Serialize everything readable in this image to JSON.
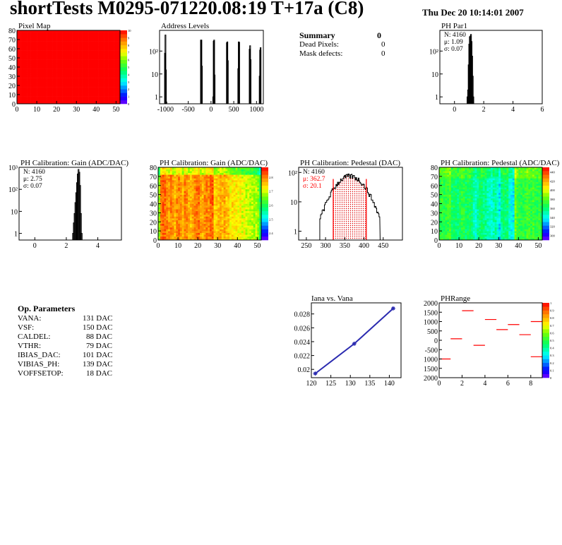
{
  "header": {
    "title": "shortTests M0295-071220.08:19 T+17a (C8)",
    "date": "Thu Dec 20 10:14:01 2007"
  },
  "summary": {
    "title": "Summary",
    "title_value": "0",
    "rows": [
      {
        "label": "Dead Pixels:",
        "value": "0"
      },
      {
        "label": "Mask defects:",
        "value": "0"
      }
    ]
  },
  "op_parameters": {
    "title": "Op. Parameters",
    "rows": [
      {
        "label": "VANA:",
        "value": "131 DAC"
      },
      {
        "label": "VSF:",
        "value": "150 DAC"
      },
      {
        "label": "CALDEL:",
        "value": "88 DAC"
      },
      {
        "label": "VTHR:",
        "value": "79 DAC"
      },
      {
        "label": "IBIAS_DAC:",
        "value": "101 DAC"
      },
      {
        "label": "VIBIAS_PH:",
        "value": "139 DAC"
      },
      {
        "label": "VOFFSETOP:",
        "value": "18 DAC"
      }
    ]
  },
  "chart_data": [
    {
      "id": "pixelmap",
      "type": "heatmap",
      "title": "Pixel Map",
      "xlim": [
        0,
        52
      ],
      "ylim": [
        0,
        80
      ],
      "xticks": [
        0,
        10,
        20,
        30,
        40,
        50
      ],
      "yticks": [
        0,
        10,
        20,
        30,
        40,
        50,
        60,
        70,
        80
      ],
      "zlim": [
        0,
        10
      ],
      "zticks": [
        0,
        1,
        2,
        3,
        4,
        5,
        6,
        7,
        8,
        9,
        10
      ],
      "values": "all cells = 10",
      "uniform_value": 10
    },
    {
      "id": "addr",
      "type": "bar",
      "title": "Address Levels",
      "xlim": [
        -1130,
        1150
      ],
      "ylim": [
        0.5,
        800
      ],
      "log_y": true,
      "xticks": [
        -1000,
        -500,
        0,
        500,
        1000
      ],
      "yticks": [
        {
          "v": 1,
          "l": "1"
        },
        {
          "v": 10,
          "l": "10"
        },
        {
          "v": 100,
          "l": "10²"
        }
      ],
      "x": [
        -1020,
        -1010,
        -1000,
        -990,
        -230,
        -220,
        -210,
        40,
        50,
        60,
        70,
        340,
        350,
        360,
        590,
        600,
        610,
        840,
        850,
        860,
        1060,
        1070,
        1080
      ],
      "values": [
        80,
        500,
        15,
        0.6,
        300,
        300,
        22,
        1,
        270,
        300,
        9,
        230,
        250,
        38,
        17,
        250,
        240,
        120,
        170,
        42,
        8,
        110,
        140
      ]
    },
    {
      "id": "phpar1",
      "type": "histogram",
      "title": "PH Par1",
      "xlim": [
        -1,
        6
      ],
      "ylim": [
        0.5,
        800
      ],
      "log_y": true,
      "xticks": [
        0,
        2,
        4,
        6
      ],
      "yticks": [
        {
          "v": 1,
          "l": "1"
        },
        {
          "v": 10,
          "l": "10"
        },
        {
          "v": 100,
          "l": "10²"
        }
      ],
      "stats": [
        "N: 4160",
        "μ: 1.09",
        "σ: 0.07"
      ],
      "bin_width": 0.04,
      "x": [
        0.86,
        0.9,
        0.94,
        0.98,
        1.02,
        1.06,
        1.1,
        1.14,
        1.18,
        1.22,
        1.26
      ],
      "values": [
        1,
        2,
        25,
        200,
        420,
        450,
        530,
        260,
        60,
        8,
        1
      ]
    },
    {
      "id": "gainhist",
      "type": "histogram",
      "title": "PH Calibration: Gain (ADC/DAC)",
      "xlim": [
        -1,
        5.5
      ],
      "ylim": [
        0.5,
        1000
      ],
      "log_y": true,
      "xticks": [
        0,
        2,
        4
      ],
      "yticks": [
        {
          "v": 1,
          "l": "1"
        },
        {
          "v": 10,
          "l": "10"
        },
        {
          "v": 100,
          "l": "10²"
        },
        {
          "v": 1000,
          "l": "10³"
        }
      ],
      "stats": [
        "N: 4160",
        "μ: 2.75",
        "σ: 0.07"
      ],
      "bin_width": 0.05,
      "x": [
        2.4,
        2.45,
        2.5,
        2.55,
        2.6,
        2.65,
        2.7,
        2.75,
        2.8,
        2.85,
        2.9,
        2.95
      ],
      "values": [
        1,
        3,
        8,
        25,
        70,
        200,
        500,
        800,
        600,
        150,
        8,
        1
      ]
    },
    {
      "id": "gainmap",
      "type": "heatmap",
      "title": "PH Calibration: Gain (ADC/DAC)",
      "xlim": [
        0,
        52
      ],
      "ylim": [
        0,
        80
      ],
      "xticks": [
        0,
        10,
        20,
        30,
        40,
        50
      ],
      "yticks": [
        0,
        10,
        20,
        30,
        40,
        50,
        60,
        70,
        80
      ],
      "zlim": [
        2.35,
        2.87
      ],
      "zticks": [
        2.4,
        2.5,
        2.6,
        2.7,
        2.8
      ],
      "column_means": [
        2.66,
        2.8,
        2.82,
        2.81,
        2.79,
        2.78,
        2.8,
        2.78,
        2.76,
        2.79,
        2.8,
        2.78,
        2.76,
        2.8,
        2.79,
        2.77,
        2.76,
        2.78,
        2.79,
        2.81,
        2.81,
        2.78,
        2.77,
        2.79,
        2.8,
        2.79,
        2.81,
        2.82,
        2.74,
        2.75,
        2.76,
        2.77,
        2.76,
        2.78,
        2.75,
        2.76,
        2.72,
        2.74,
        2.72,
        2.73,
        2.71,
        2.72,
        2.7,
        2.71,
        2.69,
        2.7,
        2.68,
        2.69,
        2.67,
        2.69,
        2.66,
        2.6
      ]
    },
    {
      "id": "pedhist",
      "type": "histogram",
      "title": "PH Calibration: Pedestal (DAC)",
      "xlim": [
        230,
        500
      ],
      "ylim": [
        0.5,
        150
      ],
      "log_y": true,
      "xticks": [
        250,
        300,
        350,
        400,
        450
      ],
      "yticks": [
        {
          "v": 1,
          "l": "1"
        },
        {
          "v": 10,
          "l": "10"
        },
        {
          "v": 100,
          "l": "10²"
        }
      ],
      "stats": [
        "N: 4160",
        "μ: 362.7",
        "σ: 20.1"
      ],
      "fit_range": [
        320,
        406
      ],
      "fit_color": "#ff0000",
      "mean": 362.7,
      "sigma": 20.1,
      "peak": 75
    },
    {
      "id": "pedmap",
      "type": "heatmap",
      "title": "PH Calibration: Pedestal (ADC/DAC)",
      "xlim": [
        0,
        52
      ],
      "ylim": [
        0,
        80
      ],
      "xticks": [
        0,
        10,
        20,
        30,
        40,
        50
      ],
      "yticks": [
        0,
        10,
        20,
        30,
        40,
        50,
        60,
        70,
        80
      ],
      "zlim": [
        290,
        450
      ],
      "zticks": [
        300,
        320,
        340,
        360,
        380,
        400,
        420,
        440
      ],
      "column_means": [
        370,
        372,
        368,
        370,
        372,
        375,
        360,
        365,
        362,
        360,
        365,
        370,
        368,
        362,
        365,
        364,
        362,
        350,
        345,
        355,
        360,
        362,
        358,
        356,
        350,
        348,
        345,
        350,
        352,
        345,
        335,
        355,
        360,
        358,
        362,
        345,
        340,
        338,
        385,
        372,
        370,
        368,
        372,
        370,
        375,
        372,
        370,
        375,
        372,
        368,
        370,
        365
      ]
    },
    {
      "id": "iana",
      "type": "line",
      "title": "Iana vs. Vana",
      "xlim": [
        120,
        143
      ],
      "ylim": [
        0.0188,
        0.0296
      ],
      "xticks": [
        120,
        125,
        130,
        135,
        140
      ],
      "yticks": [
        {
          "v": 0.02,
          "l": "0.02"
        },
        {
          "v": 0.022,
          "l": "0.022"
        },
        {
          "v": 0.024,
          "l": "0.024"
        },
        {
          "v": 0.026,
          "l": "0.026"
        },
        {
          "v": 0.028,
          "l": "0.028"
        }
      ],
      "x": [
        121,
        131,
        141
      ],
      "values": [
        0.0194,
        0.0237,
        0.0288
      ],
      "color": "#2b2bb0"
    },
    {
      "id": "phrange",
      "type": "heatmap",
      "title": "PHRange",
      "xlim": [
        0,
        9
      ],
      "ylim": [
        -2000,
        2000
      ],
      "xticks": [
        0,
        2,
        4,
        6,
        8
      ],
      "yticks": [
        {
          "v": 2000,
          "l": "2000"
        },
        {
          "v": 1500,
          "l": "1500"
        },
        {
          "v": 1000,
          "l": "1000"
        },
        {
          "v": 500,
          "l": "500"
        },
        {
          "v": 0,
          "l": "0"
        },
        {
          "v": -500,
          "l": "-500"
        },
        {
          "v": -1000,
          "l": "1000"
        },
        {
          "v": -1500,
          "l": "1500"
        },
        {
          "v": -2000,
          "l": "2000"
        }
      ],
      "zlim": [
        0,
        1
      ],
      "zticks": [
        0,
        0.1,
        0.2,
        0.3,
        0.4,
        0.5,
        0.6,
        0.7,
        0.8,
        0.9,
        1
      ],
      "segments": [
        {
          "x": 0,
          "y": -1000
        },
        {
          "x": 1,
          "y": 80
        },
        {
          "x": 2,
          "y": 1580
        },
        {
          "x": 3,
          "y": -270
        },
        {
          "x": 4,
          "y": 1110
        },
        {
          "x": 5,
          "y": 570
        },
        {
          "x": 6,
          "y": 840
        },
        {
          "x": 7,
          "y": 300
        },
        {
          "x": 8,
          "y": 1000
        },
        {
          "x": 8,
          "y": -880
        }
      ],
      "color": "#ff0000"
    }
  ]
}
